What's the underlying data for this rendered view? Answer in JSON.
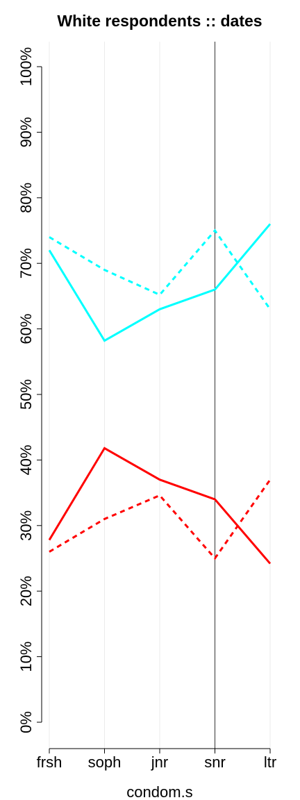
{
  "chart_data": {
    "type": "line",
    "title": "White respondents :: dates",
    "x_label": "condom.s",
    "categories": [
      "frsh",
      "soph",
      "jnr",
      "snr",
      "ltr"
    ],
    "series": [
      {
        "color": "#00ffff",
        "dashed": false,
        "values": [
          72,
          58.2,
          63,
          66,
          76
        ]
      },
      {
        "color": "#00ffff",
        "dashed": true,
        "values": [
          74,
          69,
          65.2,
          75,
          63
        ]
      },
      {
        "color": "#ff0000",
        "dashed": false,
        "values": [
          27.8,
          41.8,
          37,
          34,
          24.2
        ]
      },
      {
        "color": "#ff0000",
        "dashed": true,
        "values": [
          26,
          31,
          34.6,
          25,
          37
        ]
      }
    ],
    "ylim": [
      0,
      100
    ],
    "yticks": [
      {
        "value": 0,
        "label": "0%"
      },
      {
        "value": 10,
        "label": "10%"
      },
      {
        "value": 20,
        "label": "20%"
      },
      {
        "value": 30,
        "label": "30%"
      },
      {
        "value": 40,
        "label": "40%"
      },
      {
        "value": 50,
        "label": "50%"
      },
      {
        "value": 60,
        "label": "60%"
      },
      {
        "value": 70,
        "label": "70%"
      },
      {
        "value": 80,
        "label": "80%"
      },
      {
        "value": 90,
        "label": "90%"
      },
      {
        "value": 100,
        "label": "100%"
      }
    ],
    "grid": true,
    "vline": "snr"
  }
}
